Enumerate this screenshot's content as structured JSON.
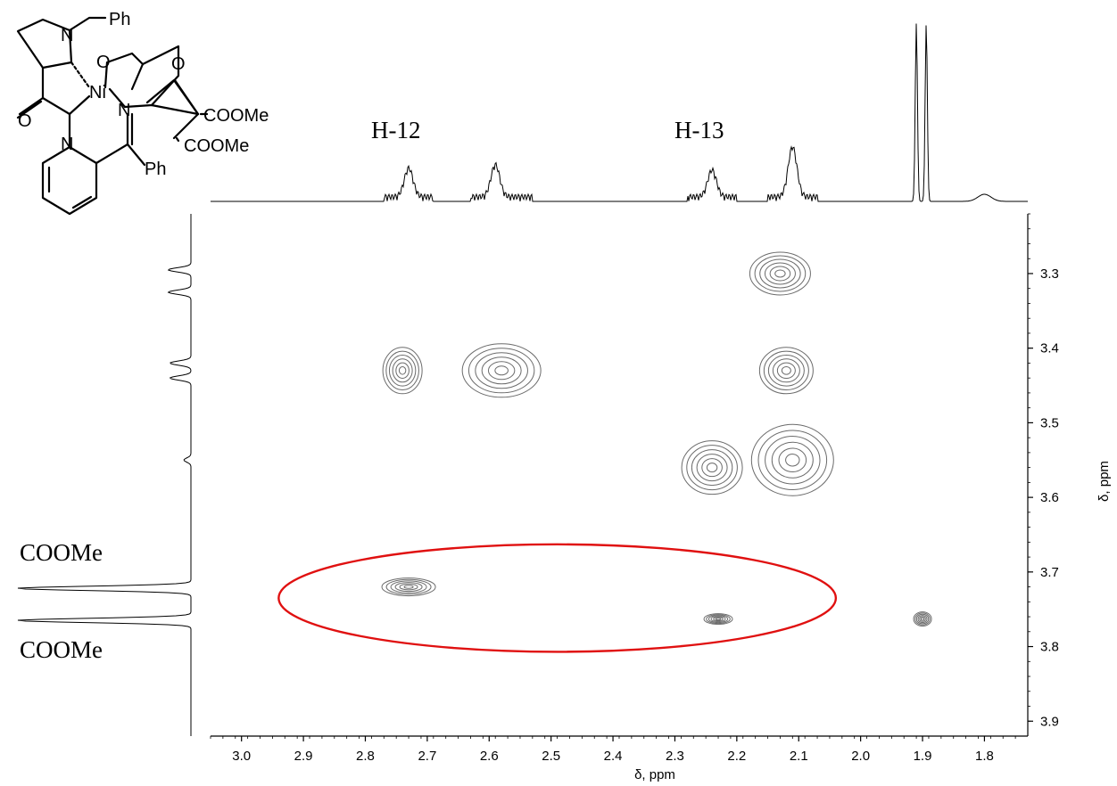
{
  "chart_data": {
    "type": "heatmap",
    "subtype": "2D NMR COSY contour plot",
    "xlabel": "δ, ppm",
    "ylabel": "δ, ppm",
    "xlim": [
      3.05,
      1.73
    ],
    "ylim": [
      3.92,
      3.22
    ],
    "x_ticks": [
      "3.0",
      "2.9",
      "2.8",
      "2.7",
      "2.6",
      "2.5",
      "2.4",
      "2.3",
      "2.2",
      "2.1",
      "2.0",
      "1.9",
      "1.8"
    ],
    "y_ticks": [
      "3.3",
      "3.4",
      "3.5",
      "3.6",
      "3.7",
      "3.8",
      "3.9"
    ],
    "peak_labels": [
      "H-12",
      "H-13"
    ],
    "side_labels": [
      "COOMe",
      "COOMe"
    ],
    "cross_peaks": [
      {
        "x": 2.13,
        "y": 3.3
      },
      {
        "x": 2.74,
        "y": 3.43
      },
      {
        "x": 2.58,
        "y": 3.43
      },
      {
        "x": 2.12,
        "y": 3.43
      },
      {
        "x": 2.24,
        "y": 3.56
      },
      {
        "x": 2.11,
        "y": 3.55
      },
      {
        "x": 2.73,
        "y": 3.72
      },
      {
        "x": 2.23,
        "y": 3.763
      },
      {
        "x": 1.9,
        "y": 3.763
      }
    ],
    "highlight": {
      "x_center": 2.49,
      "y_center": 3.735,
      "x_halfwidth": 0.45,
      "y_halfwidth": 0.072,
      "color": "#e01010"
    },
    "top_projection_peaks": [
      {
        "x": 1.91,
        "height": 1.0
      },
      {
        "x": 1.894,
        "height": 1.0
      },
      {
        "x": 2.11,
        "height": 0.28
      },
      {
        "x": 2.59,
        "height": 0.18
      },
      {
        "x": 2.73,
        "height": 0.16
      },
      {
        "x": 2.24,
        "height": 0.15
      },
      {
        "x": 1.8,
        "height": 0.04
      }
    ],
    "left_projection_peaks": [
      {
        "y": 3.295,
        "height": 0.13
      },
      {
        "y": 3.325,
        "height": 0.13
      },
      {
        "y": 3.42,
        "height": 0.12
      },
      {
        "y": 3.44,
        "height": 0.12
      },
      {
        "y": 3.55,
        "height": 0.04
      },
      {
        "y": 3.722,
        "height": 1.0
      },
      {
        "y": 3.765,
        "height": 1.0
      }
    ],
    "molecule_labels": [
      "Ph",
      "N",
      "O",
      "O",
      "Ni",
      "N",
      "O",
      "N",
      "COOMe",
      "COOMe",
      "Ph"
    ],
    "colors": {
      "contour": "#6b6b6b",
      "axis": "#000000",
      "highlight": "#e01010"
    }
  }
}
